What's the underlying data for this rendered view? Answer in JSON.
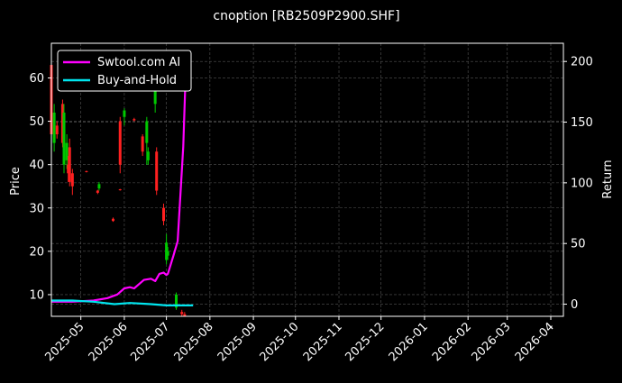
{
  "chart_data": {
    "type": "candlestick+line",
    "title": "cnoption [RB2509P2900.SHF]",
    "ylabel_left": "Price",
    "ylabel_right": "Return",
    "ylim_left": [
      5,
      68
    ],
    "ylim_right": [
      -10,
      215
    ],
    "xlim": [
      "2025-04-10",
      "2026-04-10"
    ],
    "y_ticks_left": [
      10,
      20,
      30,
      40,
      50,
      60
    ],
    "y_ticks_right": [
      0,
      50,
      100,
      150,
      200
    ],
    "x_ticks": [
      "2025-05-01",
      "2025-06-01",
      "2025-07-01",
      "2025-08-01",
      "2025-09-01",
      "2025-10-01",
      "2025-11-01",
      "2025-12-01",
      "2026-01-01",
      "2026-02-01",
      "2026-03-01",
      "2026-04-01"
    ],
    "x_tick_labels": [
      "2025-05",
      "2025-06",
      "2025-07",
      "2025-08",
      "2025-09",
      "2025-10",
      "2025-11",
      "2025-12",
      "2026-01",
      "2026-02",
      "2026-03",
      "2026-04"
    ],
    "grid": true,
    "legend_position": "top-left",
    "colors": {
      "up": "#00c800",
      "down": "#ff2020",
      "strategy": "#ff00ff",
      "benchmark": "#00e5ee",
      "background": "#000000"
    },
    "series": [
      {
        "name": "Swtool.com AI",
        "axis": "right",
        "points": [
          [
            "2025-04-10",
            2
          ],
          [
            "2025-04-25",
            2
          ],
          [
            "2025-05-10",
            3
          ],
          [
            "2025-05-20",
            5
          ],
          [
            "2025-05-27",
            8
          ],
          [
            "2025-06-01",
            13
          ],
          [
            "2025-06-05",
            14
          ],
          [
            "2025-06-08",
            13
          ],
          [
            "2025-06-15",
            20
          ],
          [
            "2025-06-20",
            21
          ],
          [
            "2025-06-23",
            19
          ],
          [
            "2025-06-26",
            25
          ],
          [
            "2025-06-29",
            26
          ],
          [
            "2025-07-01",
            24
          ],
          [
            "2025-07-02",
            25
          ],
          [
            "2025-07-06",
            40
          ],
          [
            "2025-07-09",
            52
          ],
          [
            "2025-07-13",
            130
          ],
          [
            "2025-07-15",
            200
          ]
        ]
      },
      {
        "name": "Buy-and-Hold",
        "axis": "right",
        "points": [
          [
            "2025-04-10",
            3
          ],
          [
            "2025-04-25",
            3
          ],
          [
            "2025-05-10",
            2
          ],
          [
            "2025-05-25",
            0
          ],
          [
            "2025-06-05",
            1
          ],
          [
            "2025-06-20",
            0
          ],
          [
            "2025-07-01",
            -1
          ],
          [
            "2025-07-15",
            -1
          ],
          [
            "2025-07-20",
            -1
          ]
        ]
      }
    ],
    "candles": [
      {
        "date": "2025-04-10",
        "open": 63,
        "close": 47,
        "high": 64,
        "low": 45
      },
      {
        "date": "2025-04-12",
        "open": 45,
        "close": 52,
        "high": 54,
        "low": 43
      },
      {
        "date": "2025-04-14",
        "open": 49,
        "close": 47,
        "high": 50,
        "low": 46
      },
      {
        "date": "2025-04-18",
        "open": 54,
        "close": 45,
        "high": 55,
        "low": 44
      },
      {
        "date": "2025-04-19",
        "open": 40,
        "close": 52,
        "high": 54,
        "low": 38
      },
      {
        "date": "2025-04-21",
        "open": 41,
        "close": 45,
        "high": 47,
        "low": 39
      },
      {
        "date": "2025-04-22",
        "open": 40,
        "close": 38,
        "high": 42,
        "low": 36
      },
      {
        "date": "2025-04-23",
        "open": 44,
        "close": 36,
        "high": 46,
        "low": 35
      },
      {
        "date": "2025-04-25",
        "open": 38,
        "close": 35,
        "high": 39,
        "low": 33
      },
      {
        "date": "2025-05-05",
        "open": 38.5,
        "close": 38.3,
        "high": 38.6,
        "low": 38.2
      },
      {
        "date": "2025-05-13",
        "open": 34,
        "close": 33.5,
        "high": 34.2,
        "low": 33.2
      },
      {
        "date": "2025-05-14",
        "open": 34.5,
        "close": 35.5,
        "high": 36,
        "low": 34
      },
      {
        "date": "2025-05-24",
        "open": 27.5,
        "close": 27,
        "high": 27.8,
        "low": 26.8
      },
      {
        "date": "2025-05-29",
        "open": 50,
        "close": 40,
        "high": 51,
        "low": 38
      },
      {
        "date": "2025-05-29",
        "open": 34.3,
        "close": 34.1,
        "high": 34.4,
        "low": 34
      },
      {
        "date": "2025-06-01",
        "open": 51,
        "close": 52.5,
        "high": 53,
        "low": 49
      },
      {
        "date": "2025-06-08",
        "open": 50.5,
        "close": 50.2,
        "high": 50.8,
        "low": 50
      },
      {
        "date": "2025-06-14",
        "open": 46.5,
        "close": 43,
        "high": 47,
        "low": 42
      },
      {
        "date": "2025-06-17",
        "open": 45,
        "close": 50,
        "high": 51,
        "low": 40
      },
      {
        "date": "2025-06-18",
        "open": 41,
        "close": 43,
        "high": 44,
        "low": 40
      },
      {
        "date": "2025-06-23",
        "open": 54,
        "close": 58,
        "high": 64,
        "low": 52
      },
      {
        "date": "2025-06-24",
        "open": 43,
        "close": 34,
        "high": 44,
        "low": 33
      },
      {
        "date": "2025-06-29",
        "open": 30,
        "close": 27,
        "high": 31,
        "low": 26
      },
      {
        "date": "2025-07-01",
        "open": 18,
        "close": 22,
        "high": 24,
        "low": 17
      },
      {
        "date": "2025-07-02",
        "open": 19,
        "close": 20,
        "high": 21,
        "low": 18
      },
      {
        "date": "2025-07-08",
        "open": 7,
        "close": 10,
        "high": 10.5,
        "low": 6.5
      },
      {
        "date": "2025-07-12",
        "open": 6,
        "close": 5.5,
        "high": 6.5,
        "low": 5
      },
      {
        "date": "2025-07-14",
        "open": 5.5,
        "close": 5,
        "high": 6,
        "low": 5
      }
    ]
  }
}
